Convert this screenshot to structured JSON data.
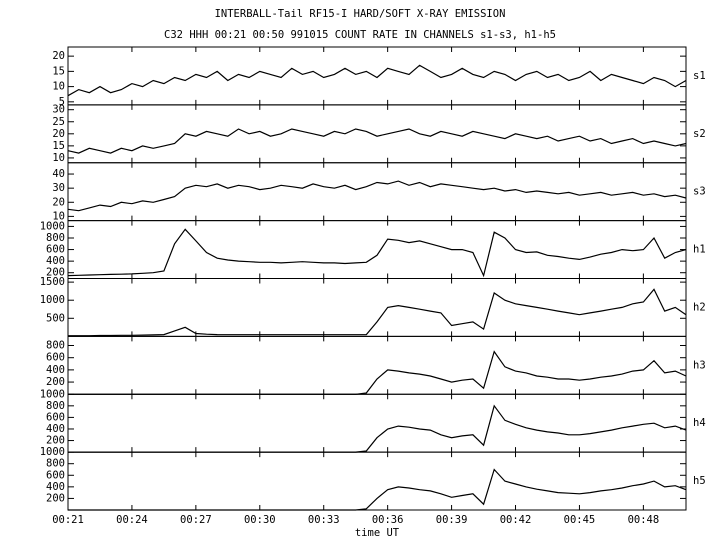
{
  "chart_data": {
    "type": "line",
    "title": "INTERBALL-Tail RF15-I HARD/SOFT X-RAY EMISSION",
    "subtitle": "C32 HHH 00:21 00:50 991015  COUNT RATE IN CHANNELS s1-s3, h1-h5",
    "xlabel": "time UT",
    "xlim": [
      21,
      50
    ],
    "xticks": [
      {
        "value": 21,
        "label": "00:21"
      },
      {
        "value": 24,
        "label": "00:24"
      },
      {
        "value": 27,
        "label": "00:27"
      },
      {
        "value": 30,
        "label": "00:30"
      },
      {
        "value": 33,
        "label": "00:33"
      },
      {
        "value": 36,
        "label": "00:36"
      },
      {
        "value": 39,
        "label": "00:39"
      },
      {
        "value": 42,
        "label": "00:42"
      },
      {
        "value": 45,
        "label": "00:45"
      },
      {
        "value": 48,
        "label": "00:48"
      }
    ],
    "x": [
      21,
      21.5,
      22,
      22.5,
      23,
      23.5,
      24,
      24.5,
      25,
      25.5,
      26,
      26.5,
      27,
      27.5,
      28,
      28.5,
      29,
      29.5,
      30,
      30.5,
      31,
      31.5,
      32,
      32.5,
      33,
      33.5,
      34,
      34.5,
      35,
      35.5,
      36,
      36.5,
      37,
      37.5,
      38,
      38.5,
      39,
      39.5,
      40,
      40.5,
      41,
      41.5,
      42,
      42.5,
      43,
      43.5,
      44,
      44.5,
      45,
      45.5,
      46,
      46.5,
      47,
      47.5,
      48,
      48.5,
      49,
      49.5,
      50
    ],
    "series": [
      {
        "name": "s1",
        "color": "#000000",
        "ylim": [
          4,
          23
        ],
        "yticks": [
          5,
          10,
          15,
          20
        ],
        "values": [
          7,
          9,
          8,
          10,
          8,
          9,
          11,
          10,
          12,
          11,
          13,
          12,
          14,
          13,
          15,
          12,
          14,
          13,
          15,
          14,
          13,
          16,
          14,
          15,
          13,
          14,
          16,
          14,
          15,
          13,
          16,
          15,
          14,
          17,
          15,
          13,
          14,
          16,
          14,
          13,
          15,
          14,
          12,
          14,
          15,
          13,
          14,
          12,
          13,
          15,
          12,
          14,
          13,
          12,
          11,
          13,
          12,
          10,
          12
        ]
      },
      {
        "name": "s2",
        "color": "#000000",
        "ylim": [
          8,
          32
        ],
        "yticks": [
          10,
          15,
          20,
          25,
          30
        ],
        "values": [
          13,
          12,
          14,
          13,
          12,
          14,
          13,
          15,
          14,
          15,
          16,
          20,
          19,
          21,
          20,
          19,
          22,
          20,
          21,
          19,
          20,
          22,
          21,
          20,
          19,
          21,
          20,
          22,
          21,
          19,
          20,
          21,
          22,
          20,
          19,
          21,
          20,
          19,
          21,
          20,
          19,
          18,
          20,
          19,
          18,
          19,
          17,
          18,
          19,
          17,
          18,
          16,
          17,
          18,
          16,
          17,
          16,
          15,
          16
        ]
      },
      {
        "name": "s3",
        "color": "#000000",
        "ylim": [
          7,
          48
        ],
        "yticks": [
          10,
          20,
          30,
          40
        ],
        "values": [
          15,
          14,
          16,
          18,
          17,
          20,
          19,
          21,
          20,
          22,
          24,
          30,
          32,
          31,
          33,
          30,
          32,
          31,
          29,
          30,
          32,
          31,
          30,
          33,
          31,
          30,
          32,
          29,
          31,
          34,
          33,
          35,
          32,
          34,
          31,
          33,
          32,
          31,
          30,
          29,
          30,
          28,
          29,
          27,
          28,
          27,
          26,
          27,
          25,
          26,
          27,
          25,
          26,
          27,
          25,
          26,
          24,
          25,
          23
        ]
      },
      {
        "name": "h1",
        "color": "#000000",
        "ylim": [
          100,
          1100
        ],
        "yticks": [
          200,
          400,
          600,
          800,
          1000
        ],
        "values": [
          150,
          155,
          160,
          165,
          170,
          175,
          180,
          190,
          200,
          230,
          700,
          950,
          750,
          550,
          450,
          420,
          400,
          390,
          380,
          380,
          370,
          380,
          390,
          380,
          370,
          370,
          360,
          370,
          380,
          500,
          780,
          760,
          720,
          750,
          700,
          650,
          600,
          600,
          550,
          150,
          900,
          800,
          600,
          550,
          560,
          500,
          480,
          450,
          430,
          470,
          520,
          550,
          600,
          580,
          600,
          800,
          450,
          550,
          600
        ]
      },
      {
        "name": "h2",
        "color": "#000000",
        "ylim": [
          0,
          1600
        ],
        "yticks": [
          500,
          1000,
          1500
        ],
        "values": [
          20,
          20,
          20,
          25,
          25,
          30,
          30,
          35,
          40,
          50,
          150,
          250,
          80,
          60,
          50,
          45,
          45,
          45,
          45,
          45,
          45,
          45,
          45,
          45,
          45,
          45,
          45,
          45,
          50,
          400,
          800,
          850,
          800,
          750,
          700,
          650,
          300,
          350,
          400,
          200,
          1200,
          1000,
          900,
          850,
          800,
          750,
          700,
          650,
          600,
          650,
          700,
          750,
          800,
          900,
          950,
          1300,
          700,
          800,
          600
        ]
      },
      {
        "name": "h3",
        "color": "#000000",
        "ylim": [
          0,
          950
        ],
        "yticks": [
          200,
          400,
          600,
          800
        ],
        "values": [
          0,
          0,
          0,
          0,
          0,
          0,
          0,
          0,
          0,
          0,
          0,
          0,
          0,
          0,
          0,
          0,
          0,
          0,
          0,
          0,
          0,
          0,
          0,
          0,
          0,
          0,
          0,
          0,
          20,
          250,
          400,
          380,
          350,
          330,
          300,
          250,
          200,
          230,
          250,
          100,
          700,
          450,
          380,
          350,
          300,
          280,
          250,
          250,
          230,
          250,
          280,
          300,
          330,
          380,
          400,
          550,
          350,
          380,
          300
        ]
      },
      {
        "name": "h4",
        "color": "#000000",
        "ylim": [
          0,
          1000
        ],
        "yticks": [
          200,
          400,
          600,
          800,
          1000
        ],
        "values": [
          0,
          0,
          0,
          0,
          0,
          0,
          0,
          0,
          0,
          0,
          0,
          0,
          0,
          0,
          0,
          0,
          0,
          0,
          0,
          0,
          0,
          0,
          0,
          0,
          0,
          0,
          0,
          0,
          20,
          250,
          400,
          450,
          430,
          400,
          380,
          300,
          250,
          280,
          300,
          120,
          800,
          550,
          480,
          420,
          380,
          350,
          330,
          300,
          300,
          320,
          350,
          380,
          420,
          450,
          480,
          500,
          420,
          450,
          380
        ]
      },
      {
        "name": "h5",
        "color": "#000000",
        "ylim": [
          0,
          1000
        ],
        "yticks": [
          200,
          400,
          600,
          800,
          1000
        ],
        "values": [
          0,
          0,
          0,
          0,
          0,
          0,
          0,
          0,
          0,
          0,
          0,
          0,
          0,
          0,
          0,
          0,
          0,
          0,
          0,
          0,
          0,
          0,
          0,
          0,
          0,
          0,
          0,
          0,
          20,
          200,
          350,
          400,
          380,
          350,
          330,
          280,
          220,
          250,
          280,
          100,
          700,
          500,
          450,
          400,
          360,
          330,
          300,
          290,
          280,
          300,
          330,
          350,
          380,
          420,
          450,
          500,
          400,
          420,
          350
        ]
      }
    ]
  }
}
